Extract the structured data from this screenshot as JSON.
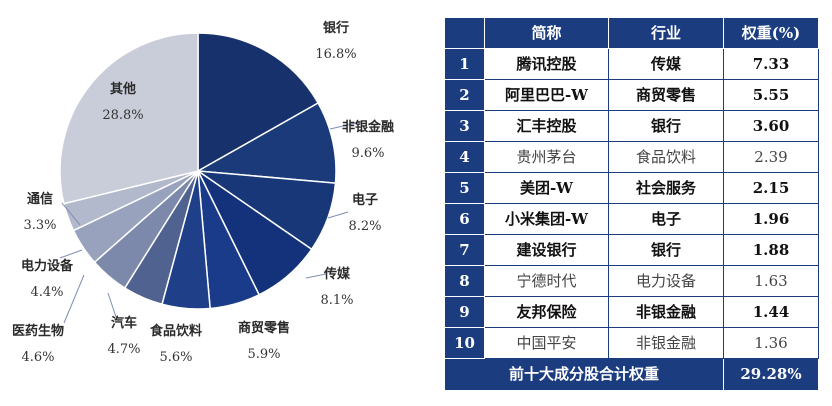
{
  "chart_data": [
    {
      "type": "pie",
      "slices": [
        {
          "label": "银行",
          "value": 16.8,
          "value_label": "16.8%",
          "color": "#16316b"
        },
        {
          "label": "非银金融",
          "value": 9.6,
          "value_label": "9.6%",
          "color": "#1a3a7a"
        },
        {
          "label": "电子",
          "value": 8.2,
          "value_label": "8.2%",
          "color": "#173778"
        },
        {
          "label": "传媒",
          "value": 8.1,
          "value_label": "8.1%",
          "color": "#14327b"
        },
        {
          "label": "商贸零售",
          "value": 5.9,
          "value_label": "5.9%",
          "color": "#193b8a"
        },
        {
          "label": "食品饮料",
          "value": 5.6,
          "value_label": "5.6%",
          "color": "#1f3f88"
        },
        {
          "label": "汽车",
          "value": 4.7,
          "value_label": "4.7%",
          "color": "#50628f"
        },
        {
          "label": "医药生物",
          "value": 4.6,
          "value_label": "4.6%",
          "color": "#7c89aa"
        },
        {
          "label": "电力设备",
          "value": 4.4,
          "value_label": "4.4%",
          "color": "#99a2bc"
        },
        {
          "label": "通信",
          "value": 3.3,
          "value_label": "3.3%",
          "color": "#b3b9cc"
        },
        {
          "label": "其他",
          "value": 28.8,
          "value_label": "28.8%",
          "color": "#c9ccd9"
        }
      ]
    },
    {
      "type": "table",
      "columns": [
        "",
        "简称",
        "行业",
        "权重(%)"
      ],
      "rows": [
        {
          "rank": "1",
          "name": "腾讯控股",
          "industry": "传媒",
          "weight": "7.33",
          "bold": true
        },
        {
          "rank": "2",
          "name": "阿里巴巴-W",
          "industry": "商贸零售",
          "weight": "5.55",
          "bold": true
        },
        {
          "rank": "3",
          "name": "汇丰控股",
          "industry": "银行",
          "weight": "3.60",
          "bold": true
        },
        {
          "rank": "4",
          "name": "贵州茅台",
          "industry": "食品饮料",
          "weight": "2.39",
          "bold": false
        },
        {
          "rank": "5",
          "name": "美团-W",
          "industry": "社会服务",
          "weight": "2.15",
          "bold": true
        },
        {
          "rank": "6",
          "name": "小米集团-W",
          "industry": "电子",
          "weight": "1.96",
          "bold": true
        },
        {
          "rank": "7",
          "name": "建设银行",
          "industry": "银行",
          "weight": "1.88",
          "bold": true
        },
        {
          "rank": "8",
          "name": "宁德时代",
          "industry": "电力设备",
          "weight": "1.63",
          "bold": false
        },
        {
          "rank": "9",
          "name": "友邦保险",
          "industry": "非银金融",
          "weight": "1.44",
          "bold": true
        },
        {
          "rank": "10",
          "name": "中国平安",
          "industry": "非银金融",
          "weight": "1.36",
          "bold": false
        }
      ],
      "footer_label": "前十大成分股合计权重",
      "footer_value": "29.28%"
    }
  ],
  "colors": {
    "header_bg": "#1b3d80",
    "line": "#7f8fb3"
  }
}
